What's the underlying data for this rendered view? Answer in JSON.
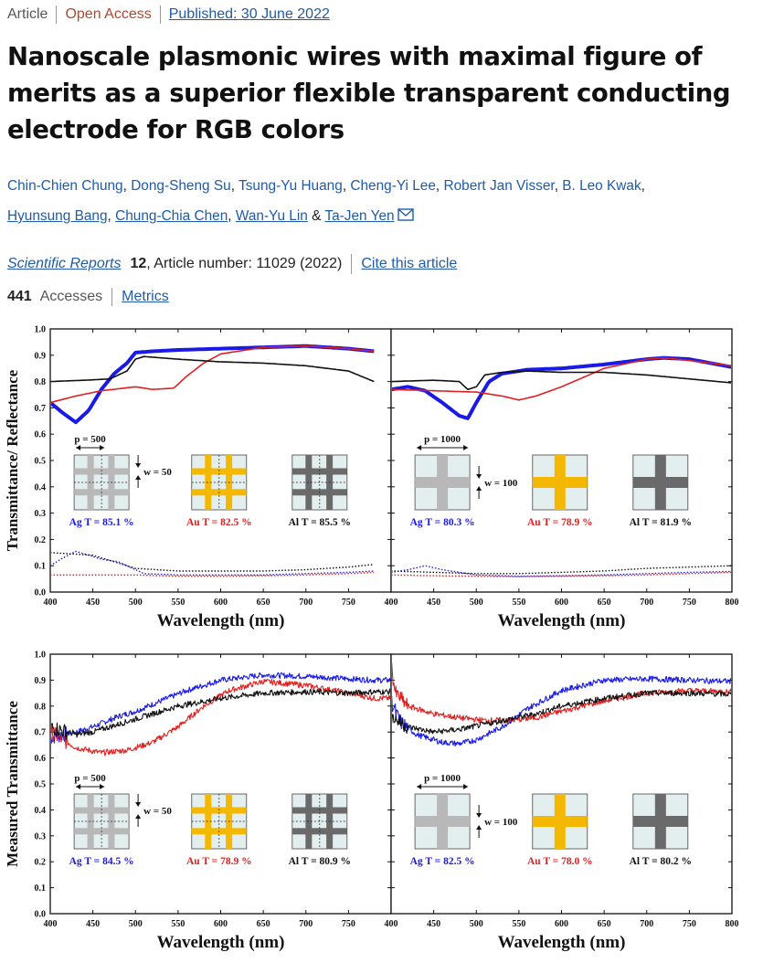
{
  "header": {
    "article_type": "Article",
    "access": "Open Access",
    "published": "Published: 30 June 2022"
  },
  "title": "Nanoscale plasmonic wires with maximal figure of merits as a superior flexible transparent conducting electrode for RGB colors",
  "authors": [
    "Chin-Chien Chung",
    "Dong-Sheng Su",
    "Tsung-Yu Huang",
    "Cheng-Yi Lee",
    "Robert Jan Visser",
    "B. Leo Kwak",
    "Hyunsung Bang",
    "Chung-Chia Chen",
    "Wan-Yu Lin",
    "Ta-Jen Yen"
  ],
  "author_sep_comma": ",",
  "author_sep_and": "&",
  "journal": {
    "name": "Scientific Reports",
    "volume": "12",
    "article_number": ", Article number: 11029 (2022)",
    "cite_label": "Cite this article"
  },
  "metrics": {
    "accesses_count": "441",
    "accesses_label": "Accesses",
    "metrics_label": "Metrics"
  },
  "colors": {
    "ag": "#1a1ae6",
    "au": "#e02020",
    "al": "#111111",
    "link": "#1f5ba8",
    "gold": "#f5b800",
    "silver_line": "#b8b8b8",
    "al_line": "#6a6a6a",
    "cell_bg": "#e3eeee"
  },
  "icons": {
    "email": "envelope-icon"
  },
  "chart_data": [
    {
      "type": "line",
      "panel": "top-left",
      "ylabel": "Transmittance/ Reflectance",
      "xlabel": "Wavelength (nm)",
      "xlim": [
        400,
        800
      ],
      "ylim": [
        0.0,
        1.0
      ],
      "xticks": [
        400,
        450,
        500,
        550,
        600,
        650,
        700,
        750
      ],
      "yticks": [
        "0.0",
        "0.1",
        "0.2",
        "0.3",
        "0.4",
        "0.5",
        "0.6",
        "0.7",
        "0.8",
        "0.9",
        "1.0"
      ],
      "inset": {
        "period": "p = 500",
        "width": "w = 50",
        "labels": [
          "Ag T = 85.1 %",
          "Au T = 82.5 %",
          "Al T = 85.5 %"
        ],
        "dashed": true
      },
      "series": [
        {
          "color": "ag",
          "style": "solid-thick",
          "x": [
            400,
            415,
            430,
            445,
            460,
            475,
            490,
            500,
            520,
            550,
            600,
            650,
            700,
            750,
            780
          ],
          "y": [
            0.72,
            0.68,
            0.645,
            0.69,
            0.77,
            0.83,
            0.87,
            0.91,
            0.915,
            0.92,
            0.925,
            0.93,
            0.935,
            0.925,
            0.915
          ]
        },
        {
          "color": "au",
          "style": "solid",
          "x": [
            400,
            430,
            460,
            500,
            520,
            545,
            560,
            580,
            600,
            650,
            700,
            750,
            780
          ],
          "y": [
            0.72,
            0.745,
            0.765,
            0.78,
            0.77,
            0.775,
            0.82,
            0.87,
            0.905,
            0.93,
            0.935,
            0.925,
            0.915
          ]
        },
        {
          "color": "al",
          "style": "solid",
          "x": [
            400,
            440,
            470,
            490,
            500,
            510,
            550,
            600,
            650,
            700,
            750,
            780
          ],
          "y": [
            0.8,
            0.805,
            0.81,
            0.84,
            0.885,
            0.895,
            0.885,
            0.875,
            0.87,
            0.86,
            0.84,
            0.8
          ]
        },
        {
          "color": "ag",
          "style": "dotted",
          "x": [
            400,
            415,
            430,
            445,
            460,
            480,
            500,
            510,
            550,
            600,
            650,
            700,
            750,
            780
          ],
          "y": [
            0.1,
            0.13,
            0.155,
            0.14,
            0.125,
            0.115,
            0.085,
            0.07,
            0.065,
            0.065,
            0.065,
            0.07,
            0.075,
            0.08
          ]
        },
        {
          "color": "au",
          "style": "dotted",
          "x": [
            400,
            450,
            500,
            550,
            600,
            650,
            700,
            750,
            780
          ],
          "y": [
            0.065,
            0.065,
            0.065,
            0.06,
            0.06,
            0.062,
            0.065,
            0.07,
            0.075
          ]
        },
        {
          "color": "al",
          "style": "dotted",
          "x": [
            400,
            450,
            500,
            550,
            600,
            650,
            700,
            750,
            780
          ],
          "y": [
            0.15,
            0.14,
            0.09,
            0.08,
            0.08,
            0.08,
            0.085,
            0.095,
            0.105
          ]
        }
      ]
    },
    {
      "type": "line",
      "panel": "top-right",
      "xlabel": "Wavelength (nm)",
      "xlim": [
        400,
        800
      ],
      "ylim": [
        0.0,
        1.0
      ],
      "xticks": [
        400,
        450,
        500,
        550,
        600,
        650,
        700,
        750,
        800
      ],
      "inset": {
        "period": "p = 1000",
        "width": "w = 100",
        "labels": [
          "Ag T = 80.3 %",
          "Au T = 78.9 %",
          "Al T = 81.9 %"
        ],
        "dashed": false
      },
      "series": [
        {
          "color": "ag",
          "style": "solid-thick",
          "x": [
            400,
            420,
            440,
            460,
            480,
            490,
            500,
            515,
            530,
            560,
            600,
            650,
            700,
            720,
            750,
            800
          ],
          "y": [
            0.77,
            0.78,
            0.765,
            0.72,
            0.67,
            0.66,
            0.72,
            0.8,
            0.83,
            0.845,
            0.85,
            0.865,
            0.885,
            0.89,
            0.885,
            0.855
          ]
        },
        {
          "color": "au",
          "style": "solid",
          "x": [
            400,
            450,
            500,
            530,
            550,
            570,
            600,
            650,
            700,
            720,
            750,
            800
          ],
          "y": [
            0.77,
            0.765,
            0.76,
            0.745,
            0.73,
            0.745,
            0.78,
            0.85,
            0.885,
            0.89,
            0.88,
            0.86
          ]
        },
        {
          "color": "al",
          "style": "solid",
          "x": [
            400,
            450,
            480,
            490,
            500,
            510,
            530,
            560,
            600,
            650,
            700,
            750,
            800
          ],
          "y": [
            0.8,
            0.805,
            0.8,
            0.77,
            0.78,
            0.825,
            0.835,
            0.84,
            0.835,
            0.835,
            0.825,
            0.81,
            0.795
          ]
        },
        {
          "color": "ag",
          "style": "dotted",
          "x": [
            400,
            420,
            440,
            460,
            480,
            500,
            550,
            600,
            650,
            700,
            750,
            800
          ],
          "y": [
            0.075,
            0.085,
            0.1,
            0.085,
            0.075,
            0.065,
            0.06,
            0.062,
            0.065,
            0.07,
            0.075,
            0.078
          ]
        },
        {
          "color": "au",
          "style": "dotted",
          "x": [
            400,
            450,
            500,
            550,
            600,
            650,
            700,
            750,
            800
          ],
          "y": [
            0.065,
            0.062,
            0.06,
            0.058,
            0.06,
            0.062,
            0.065,
            0.07,
            0.075
          ]
        },
        {
          "color": "al",
          "style": "dotted",
          "x": [
            400,
            450,
            500,
            550,
            600,
            650,
            700,
            750,
            800
          ],
          "y": [
            0.08,
            0.075,
            0.07,
            0.07,
            0.075,
            0.08,
            0.09,
            0.095,
            0.1
          ]
        }
      ]
    },
    {
      "type": "line",
      "panel": "bottom-left",
      "ylabel": "Measured Transmittance",
      "xlabel": "Wavelength (nm)",
      "xlim": [
        400,
        800
      ],
      "ylim": [
        0.0,
        1.0
      ],
      "xticks": [
        400,
        450,
        500,
        550,
        600,
        650,
        700,
        750
      ],
      "yticks": [
        "0.0",
        "0.1",
        "0.2",
        "0.3",
        "0.4",
        "0.5",
        "0.6",
        "0.7",
        "0.8",
        "0.9",
        "1.0"
      ],
      "inset": {
        "period": "p = 500",
        "width": "w = 50",
        "labels": [
          "Ag T = 84.5 %",
          "Au T = 78.9 %",
          "Al T = 80.9 %"
        ],
        "dashed": true
      },
      "series": [
        {
          "color": "ag",
          "style": "noisy",
          "x": [
            400,
            430,
            450,
            480,
            500,
            530,
            560,
            600,
            650,
            700,
            750,
            780
          ],
          "y": [
            0.68,
            0.7,
            0.72,
            0.76,
            0.78,
            0.82,
            0.86,
            0.9,
            0.92,
            0.915,
            0.905,
            0.9
          ]
        },
        {
          "color": "au",
          "style": "noisy",
          "x": [
            400,
            430,
            460,
            490,
            520,
            550,
            580,
            610,
            650,
            700,
            750,
            780
          ],
          "y": [
            0.7,
            0.64,
            0.62,
            0.63,
            0.66,
            0.72,
            0.8,
            0.86,
            0.895,
            0.88,
            0.85,
            0.83
          ]
        },
        {
          "color": "al",
          "style": "noisy",
          "x": [
            400,
            430,
            450,
            480,
            510,
            550,
            600,
            650,
            700,
            750,
            780
          ],
          "y": [
            0.72,
            0.69,
            0.7,
            0.73,
            0.76,
            0.8,
            0.83,
            0.85,
            0.855,
            0.85,
            0.855
          ]
        }
      ]
    },
    {
      "type": "line",
      "panel": "bottom-right",
      "xlabel": "Wavelength (nm)",
      "xlim": [
        400,
        800
      ],
      "ylim": [
        0.0,
        1.0
      ],
      "xticks": [
        400,
        450,
        500,
        550,
        600,
        650,
        700,
        750,
        800
      ],
      "inset": {
        "period": "p = 1000",
        "width": "w = 100",
        "labels": [
          "Ag T = 82.5 %",
          "Au T = 78.0 %",
          "Al T = 80.2 %"
        ],
        "dashed": false
      },
      "series": [
        {
          "color": "ag",
          "style": "noisy",
          "x": [
            400,
            410,
            430,
            460,
            480,
            500,
            530,
            560,
            600,
            650,
            700,
            750,
            800
          ],
          "y": [
            0.82,
            0.74,
            0.69,
            0.66,
            0.655,
            0.67,
            0.72,
            0.79,
            0.86,
            0.9,
            0.905,
            0.9,
            0.895
          ]
        },
        {
          "color": "au",
          "style": "noisy",
          "x": [
            400,
            405,
            420,
            450,
            480,
            510,
            540,
            570,
            600,
            650,
            700,
            750,
            800
          ],
          "y": [
            0.96,
            0.85,
            0.8,
            0.77,
            0.755,
            0.745,
            0.745,
            0.755,
            0.78,
            0.82,
            0.85,
            0.86,
            0.855
          ]
        },
        {
          "color": "al",
          "style": "noisy",
          "x": [
            400,
            420,
            450,
            480,
            510,
            540,
            570,
            600,
            650,
            700,
            750,
            800
          ],
          "y": [
            0.76,
            0.72,
            0.7,
            0.71,
            0.73,
            0.75,
            0.77,
            0.8,
            0.83,
            0.85,
            0.85,
            0.845
          ]
        }
      ]
    }
  ]
}
